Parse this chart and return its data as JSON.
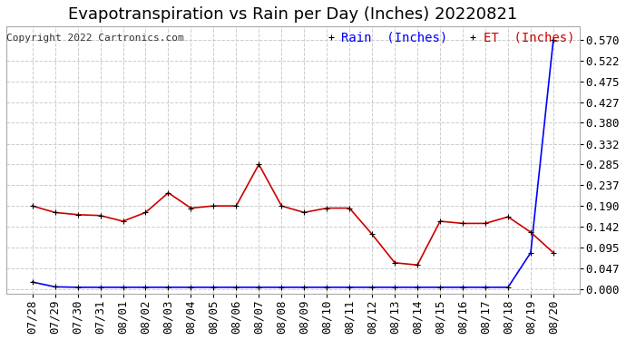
{
  "title": "Evapotranspiration vs Rain per Day (Inches) 20220821",
  "copyright": "Copyright 2022 Cartronics.com",
  "legend_rain": "Rain  (Inches)",
  "legend_et": "ET  (Inches)",
  "x_labels": [
    "07/28",
    "07/29",
    "07/30",
    "07/31",
    "08/01",
    "08/02",
    "08/03",
    "08/04",
    "08/05",
    "08/06",
    "08/07",
    "08/08",
    "08/09",
    "08/10",
    "08/11",
    "08/12",
    "08/13",
    "08/14",
    "08/15",
    "08/16",
    "08/17",
    "08/18",
    "08/19",
    "08/20"
  ],
  "rain_values": [
    0.016,
    0.005,
    0.004,
    0.004,
    0.004,
    0.004,
    0.004,
    0.004,
    0.004,
    0.004,
    0.004,
    0.004,
    0.004,
    0.004,
    0.004,
    0.004,
    0.004,
    0.004,
    0.004,
    0.004,
    0.004,
    0.004,
    0.083,
    0.57
  ],
  "et_values": [
    0.19,
    0.175,
    0.17,
    0.168,
    0.155,
    0.175,
    0.22,
    0.185,
    0.19,
    0.19,
    0.285,
    0.19,
    0.175,
    0.185,
    0.185,
    0.125,
    0.06,
    0.055,
    0.155,
    0.15,
    0.15,
    0.165,
    0.13,
    0.083
  ],
  "rain_color": "#0000ff",
  "et_color": "#cc0000",
  "marker_color": "#000000",
  "yticks": [
    0.0,
    0.047,
    0.095,
    0.142,
    0.19,
    0.237,
    0.285,
    0.332,
    0.38,
    0.427,
    0.475,
    0.522,
    0.57
  ],
  "ylim": [
    -0.01,
    0.6
  ],
  "bg_color": "#ffffff",
  "grid_color": "#cccccc",
  "title_fontsize": 13,
  "copyright_fontsize": 8,
  "legend_fontsize": 10,
  "tick_fontsize": 9
}
